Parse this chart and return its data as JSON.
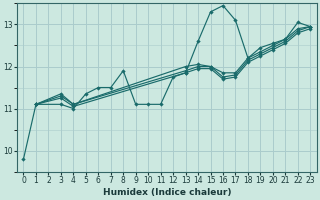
{
  "xlabel": "Humidex (Indice chaleur)",
  "bg_color": "#cce8e0",
  "grid_color_major": "#aacccc",
  "grid_color_minor": "#ddaaaa",
  "line_color": "#1a6b6b",
  "xlim": [
    -0.5,
    23.5
  ],
  "ylim": [
    9.5,
    13.5
  ],
  "yticks": [
    10,
    11,
    12,
    13
  ],
  "xticks": [
    0,
    1,
    2,
    3,
    4,
    5,
    6,
    7,
    8,
    9,
    10,
    11,
    12,
    13,
    14,
    15,
    16,
    17,
    18,
    19,
    20,
    21,
    22,
    23
  ],
  "line1_x": [
    0,
    1,
    3,
    4,
    5,
    6,
    7,
    8,
    9,
    10,
    11,
    12,
    13,
    14,
    15,
    16,
    17,
    18,
    19,
    20,
    21,
    22,
    23
  ],
  "line1_y": [
    9.8,
    11.1,
    11.1,
    11.0,
    11.35,
    11.5,
    11.5,
    11.9,
    11.1,
    11.1,
    11.1,
    11.75,
    11.85,
    12.6,
    13.3,
    13.45,
    13.1,
    12.2,
    12.45,
    12.55,
    12.65,
    13.05,
    12.95
  ],
  "line2_x": [
    1,
    3,
    4,
    13,
    14,
    15,
    16,
    17,
    18,
    19,
    20,
    21,
    22,
    23
  ],
  "line2_y": [
    11.1,
    11.35,
    11.1,
    12.0,
    12.05,
    12.0,
    11.85,
    11.85,
    12.2,
    12.35,
    12.5,
    12.65,
    12.9,
    12.95
  ],
  "line3_x": [
    1,
    3,
    4,
    13,
    14,
    15,
    16,
    17,
    18,
    19,
    20,
    21,
    22,
    23
  ],
  "line3_y": [
    11.1,
    11.3,
    11.1,
    11.9,
    12.0,
    12.0,
    11.75,
    11.8,
    12.15,
    12.3,
    12.45,
    12.6,
    12.85,
    12.95
  ],
  "line4_x": [
    1,
    3,
    4,
    13,
    14,
    15,
    16,
    17,
    18,
    19,
    20,
    21,
    22,
    23
  ],
  "line4_y": [
    11.1,
    11.25,
    11.05,
    11.85,
    11.95,
    11.95,
    11.7,
    11.75,
    12.1,
    12.25,
    12.4,
    12.55,
    12.8,
    12.9
  ]
}
